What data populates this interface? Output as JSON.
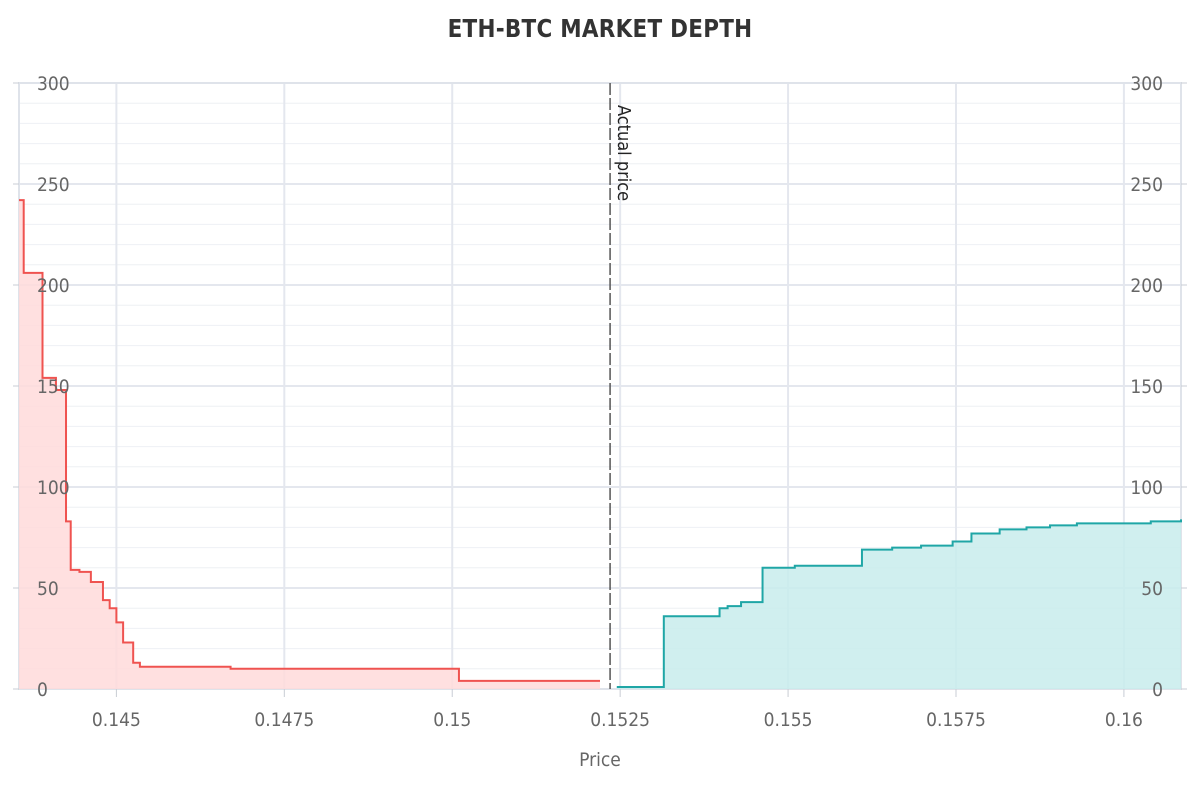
{
  "chart_data": {
    "type": "area",
    "title": "ETH-BTC MARKET DEPTH",
    "xlabel": "Price",
    "ylabel": "",
    "xlim": [
      0.14355,
      0.16085
    ],
    "ylim": [
      0,
      300
    ],
    "x_ticks": [
      0.145,
      0.1475,
      0.15,
      0.1525,
      0.155,
      0.1575,
      0.16
    ],
    "x_tick_labels": [
      "0.145",
      "0.1475",
      "0.15",
      "0.1525",
      "0.155",
      "0.1575",
      "0.16"
    ],
    "y_ticks": [
      0,
      50,
      100,
      150,
      200,
      250,
      300
    ],
    "y_tick_labels": [
      "0",
      "50",
      "100",
      "150",
      "200",
      "250",
      "300"
    ],
    "y_axes": "left-and-right",
    "grid": true,
    "legend": "none",
    "annotation": {
      "x": 0.15235,
      "text": "Actual price",
      "style": "dashed-vertical"
    },
    "series": [
      {
        "side": "bid",
        "color": "#ef5350",
        "fill": "#ffdada",
        "points": [
          [
            0.14355,
            242
          ],
          [
            0.14362,
            206
          ],
          [
            0.14382,
            206
          ],
          [
            0.1439,
            154
          ],
          [
            0.14403,
            154
          ],
          [
            0.1441,
            148
          ],
          [
            0.1442,
            148
          ],
          [
            0.14425,
            83
          ],
          [
            0.14428,
            83
          ],
          [
            0.14432,
            59
          ],
          [
            0.14445,
            58
          ],
          [
            0.14462,
            53
          ],
          [
            0.1448,
            44
          ],
          [
            0.1449,
            40
          ],
          [
            0.145,
            33
          ],
          [
            0.1451,
            23
          ],
          [
            0.14525,
            13
          ],
          [
            0.14535,
            11
          ],
          [
            0.146,
            11
          ],
          [
            0.1467,
            10
          ],
          [
            0.1501,
            4
          ],
          [
            0.1522,
            4
          ]
        ]
      },
      {
        "side": "ask",
        "color": "#1fa6a6",
        "fill": "#c8ecec",
        "points": [
          [
            0.15245,
            1
          ],
          [
            0.15315,
            36
          ],
          [
            0.15398,
            40
          ],
          [
            0.1541,
            41
          ],
          [
            0.1543,
            43
          ],
          [
            0.15462,
            60
          ],
          [
            0.1551,
            61
          ],
          [
            0.1556,
            61
          ],
          [
            0.1561,
            69
          ],
          [
            0.15655,
            70
          ],
          [
            0.15698,
            71
          ],
          [
            0.15745,
            73
          ],
          [
            0.15773,
            77
          ],
          [
            0.15815,
            79
          ],
          [
            0.15855,
            80
          ],
          [
            0.1589,
            81
          ],
          [
            0.1593,
            82
          ],
          [
            0.15995,
            82
          ],
          [
            0.1604,
            83
          ],
          [
            0.16085,
            84
          ]
        ]
      }
    ]
  }
}
